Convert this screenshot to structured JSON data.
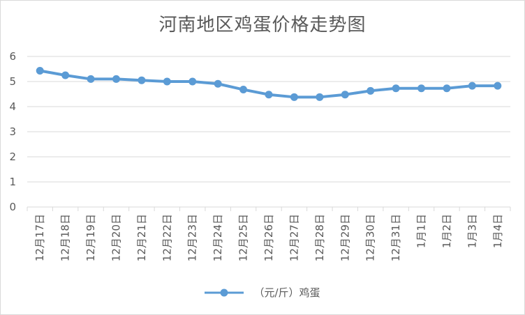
{
  "chart_data": {
    "type": "line",
    "title": "河南地区鸡蛋价格走势图",
    "categories": [
      "12月17日",
      "12月18日",
      "12月19日",
      "12月20日",
      "12月21日",
      "12月22日",
      "12月23日",
      "12月24日",
      "12月25日",
      "12月26日",
      "12月27日",
      "12月28日",
      "12月29日",
      "12月30日",
      "12月31日",
      "1月1日",
      "1月2日",
      "1月3日",
      "1月4日"
    ],
    "series": [
      {
        "name": "（元/斤）鸡蛋",
        "values": [
          5.43,
          5.25,
          5.1,
          5.1,
          5.05,
          5.0,
          5.0,
          4.91,
          4.68,
          4.48,
          4.38,
          4.38,
          4.48,
          4.63,
          4.73,
          4.73,
          4.73,
          4.83,
          4.83
        ],
        "color": "#5b9bd5"
      }
    ],
    "ylim": [
      0,
      6
    ],
    "yticks": [
      "0",
      "1",
      "2",
      "3",
      "4",
      "5",
      "6"
    ],
    "grid": true,
    "legend_position": "bottom"
  }
}
